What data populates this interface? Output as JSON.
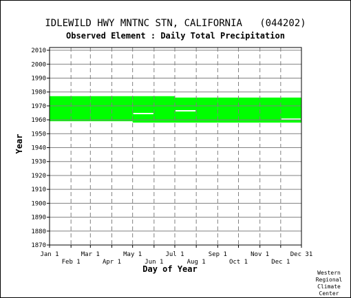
{
  "title": "IDLEWILD HWY MNTNC STN, CALIFORNIA   (044202)",
  "subtitle": "Observed Element : Daily Total Precipitation",
  "credit": [
    "Western",
    "Regional",
    "Climate",
    "Center"
  ],
  "chart_data": {
    "type": "bar",
    "title": "IDLEWILD HWY MNTNC STN, CALIFORNIA   (044202)",
    "subtitle": "Observed Element : Daily Total Precipitation",
    "xlabel": "Day of Year",
    "ylabel": "Year",
    "xlim": [
      1,
      365
    ],
    "ylim": [
      1870,
      2012
    ],
    "yticks": [
      1870,
      1880,
      1890,
      1900,
      1910,
      1920,
      1930,
      1940,
      1950,
      1960,
      1970,
      1980,
      1990,
      2000,
      2010
    ],
    "xticks": [
      {
        "label": "Jan 1",
        "day": 1,
        "row": 0
      },
      {
        "label": "Feb 1",
        "day": 32,
        "row": 1
      },
      {
        "label": "Mar 1",
        "day": 60,
        "row": 0
      },
      {
        "label": "Apr 1",
        "day": 91,
        "row": 1
      },
      {
        "label": "May 1",
        "day": 121,
        "row": 0
      },
      {
        "label": "Jun 1",
        "day": 152,
        "row": 1
      },
      {
        "label": "Jul 1",
        "day": 182,
        "row": 0
      },
      {
        "label": "Aug 1",
        "day": 213,
        "row": 1
      },
      {
        "label": "Sep 1",
        "day": 244,
        "row": 0
      },
      {
        "label": "Oct 1",
        "day": 274,
        "row": 1
      },
      {
        "label": "Nov 1",
        "day": 305,
        "row": 0
      },
      {
        "label": "Dec 1",
        "day": 335,
        "row": 1
      },
      {
        "label": "Dec 31",
        "day": 365,
        "row": 0
      }
    ],
    "grid": true,
    "series_color": "#00ff00",
    "segments": [
      {
        "day_start": 1,
        "day_end": 60,
        "year_start": 1959,
        "year_end": 1977
      },
      {
        "day_start": 60,
        "day_end": 121,
        "year_start": 1959,
        "year_end": 1977
      },
      {
        "day_start": 121,
        "day_end": 182,
        "year_start": 1958,
        "year_end": 1977
      },
      {
        "day_start": 182,
        "day_end": 244,
        "year_start": 1958,
        "year_end": 1976
      },
      {
        "day_start": 244,
        "day_end": 365,
        "year_start": 1958,
        "year_end": 1976
      }
    ],
    "gaps": [
      {
        "day_start": 121,
        "day_end": 152,
        "year": 1964.5
      },
      {
        "day_start": 182,
        "day_end": 213,
        "year": 1966.5
      },
      {
        "day_start": 335,
        "day_end": 365,
        "year": 1960.5
      }
    ]
  }
}
